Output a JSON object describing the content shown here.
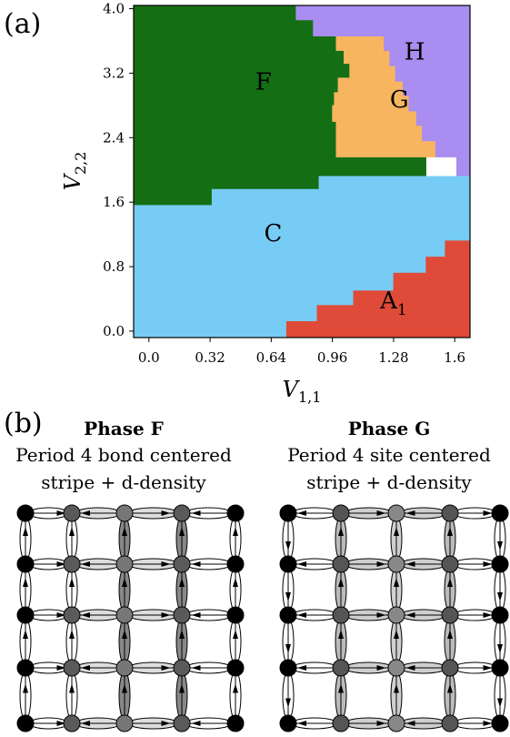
{
  "panel_a": {
    "label": "(a)",
    "xlabel": "V_{1,1}",
    "ylabel": "V_{2,2}"
  },
  "panel_b": {
    "label": "(b)",
    "left": {
      "title": "Phase F",
      "line1": "Period 4 bond centered",
      "line2": "stripe + d-density"
    },
    "right": {
      "title": "Phase G",
      "line1": "Period 4 site centered",
      "line2": "stripe + d-density"
    },
    "left_node_colors": [
      "#000000",
      "#555555",
      "#777777",
      "#777777",
      "#555555",
      "#000000"
    ],
    "right_node_colors": [
      "#000000",
      "#555555",
      "#888888",
      "#555555",
      "#000000"
    ]
  },
  "chart_data": {
    "type": "heatmap",
    "title": "",
    "xlabel": "V_{1,1}",
    "ylabel": "V_{2,2}",
    "xlim": [
      -0.08,
      1.68
    ],
    "ylim": [
      -0.08,
      4.04
    ],
    "x_ticks": [
      0.0,
      0.32,
      0.64,
      0.96,
      1.28,
      1.6
    ],
    "x_tick_labels": [
      "0.0",
      "0.32",
      "0.64",
      "0.96",
      "1.28",
      "1.6"
    ],
    "y_ticks": [
      0.0,
      0.8,
      1.6,
      2.4,
      3.2,
      4.0
    ],
    "y_tick_labels": [
      "0.0",
      "0.8",
      "1.6",
      "2.4",
      "3.2",
      "4.0"
    ],
    "phases": [
      {
        "name": "F",
        "label_at": [
          0.6,
          3.1
        ],
        "color": "#146f14",
        "polygon": [
          [
            -0.08,
            4.04
          ],
          [
            0.77,
            4.04
          ],
          [
            0.77,
            3.86
          ],
          [
            0.86,
            3.86
          ],
          [
            0.86,
            3.66
          ],
          [
            0.98,
            3.66
          ],
          [
            0.98,
            3.48
          ],
          [
            1.02,
            3.48
          ],
          [
            1.02,
            3.32
          ],
          [
            1.05,
            3.32
          ],
          [
            1.05,
            3.14
          ],
          [
            0.99,
            3.14
          ],
          [
            0.99,
            2.96
          ],
          [
            0.97,
            2.96
          ],
          [
            0.97,
            2.8
          ],
          [
            0.96,
            2.8
          ],
          [
            0.96,
            2.6
          ],
          [
            0.98,
            2.6
          ],
          [
            0.98,
            2.16
          ],
          [
            1.45,
            2.16
          ],
          [
            1.45,
            1.92
          ],
          [
            0.89,
            1.92
          ],
          [
            0.89,
            1.76
          ],
          [
            0.33,
            1.76
          ],
          [
            0.33,
            1.56
          ],
          [
            -0.08,
            1.56
          ]
        ]
      },
      {
        "name": "G",
        "label_at": [
          1.31,
          2.88
        ],
        "color": "#f7b560",
        "polygon": [
          [
            0.98,
            2.16
          ],
          [
            1.5,
            2.16
          ],
          [
            1.5,
            2.36
          ],
          [
            1.43,
            2.36
          ],
          [
            1.43,
            2.55
          ],
          [
            1.4,
            2.55
          ],
          [
            1.4,
            2.73
          ],
          [
            1.36,
            2.73
          ],
          [
            1.36,
            2.92
          ],
          [
            1.33,
            2.92
          ],
          [
            1.33,
            3.1
          ],
          [
            1.29,
            3.1
          ],
          [
            1.29,
            3.29
          ],
          [
            1.26,
            3.29
          ],
          [
            1.26,
            3.48
          ],
          [
            1.23,
            3.48
          ],
          [
            1.23,
            3.66
          ],
          [
            0.98,
            3.66
          ],
          [
            0.98,
            3.48
          ],
          [
            1.02,
            3.48
          ],
          [
            1.02,
            3.32
          ],
          [
            1.05,
            3.32
          ],
          [
            1.05,
            3.14
          ],
          [
            0.99,
            3.14
          ],
          [
            0.99,
            2.96
          ],
          [
            0.97,
            2.96
          ],
          [
            0.97,
            2.8
          ],
          [
            0.96,
            2.8
          ],
          [
            0.96,
            2.6
          ],
          [
            0.98,
            2.6
          ]
        ]
      },
      {
        "name": "H",
        "label_at": [
          1.39,
          3.47
        ],
        "color": "#a98df0",
        "polygon": [
          [
            0.77,
            4.04
          ],
          [
            1.68,
            4.04
          ],
          [
            1.68,
            1.92
          ],
          [
            1.61,
            1.92
          ],
          [
            1.61,
            2.16
          ],
          [
            1.5,
            2.16
          ],
          [
            1.5,
            2.36
          ],
          [
            1.43,
            2.36
          ],
          [
            1.43,
            2.55
          ],
          [
            1.4,
            2.55
          ],
          [
            1.4,
            2.73
          ],
          [
            1.36,
            2.73
          ],
          [
            1.36,
            2.92
          ],
          [
            1.33,
            2.92
          ],
          [
            1.33,
            3.1
          ],
          [
            1.29,
            3.1
          ],
          [
            1.29,
            3.29
          ],
          [
            1.26,
            3.29
          ],
          [
            1.26,
            3.48
          ],
          [
            1.23,
            3.48
          ],
          [
            1.23,
            3.66
          ],
          [
            0.98,
            3.66
          ],
          [
            0.86,
            3.66
          ],
          [
            0.86,
            3.86
          ],
          [
            0.77,
            3.86
          ]
        ]
      },
      {
        "name": "C",
        "label_at": [
          0.65,
          1.22
        ],
        "color": "#77ccf5",
        "polygon": [
          [
            -0.08,
            1.56
          ],
          [
            0.33,
            1.56
          ],
          [
            0.33,
            1.76
          ],
          [
            0.89,
            1.76
          ],
          [
            0.89,
            1.92
          ],
          [
            1.68,
            1.92
          ],
          [
            1.68,
            1.12
          ],
          [
            1.55,
            1.12
          ],
          [
            1.55,
            0.92
          ],
          [
            1.45,
            0.92
          ],
          [
            1.45,
            0.72
          ],
          [
            1.28,
            0.72
          ],
          [
            1.28,
            0.5
          ],
          [
            1.07,
            0.5
          ],
          [
            1.07,
            0.32
          ],
          [
            0.88,
            0.32
          ],
          [
            0.88,
            0.12
          ],
          [
            0.72,
            0.12
          ],
          [
            0.72,
            -0.08
          ],
          [
            -0.08,
            -0.08
          ]
        ]
      },
      {
        "name": "A_1",
        "label_at": [
          1.28,
          0.38
        ],
        "color": "#df4b38",
        "polygon": [
          [
            0.72,
            -0.08
          ],
          [
            1.68,
            -0.08
          ],
          [
            1.68,
            1.12
          ],
          [
            1.55,
            1.12
          ],
          [
            1.55,
            0.92
          ],
          [
            1.45,
            0.92
          ],
          [
            1.45,
            0.72
          ],
          [
            1.28,
            0.72
          ],
          [
            1.28,
            0.5
          ],
          [
            1.07,
            0.5
          ],
          [
            1.07,
            0.32
          ],
          [
            0.88,
            0.32
          ],
          [
            0.88,
            0.12
          ],
          [
            0.72,
            0.12
          ]
        ]
      }
    ]
  }
}
